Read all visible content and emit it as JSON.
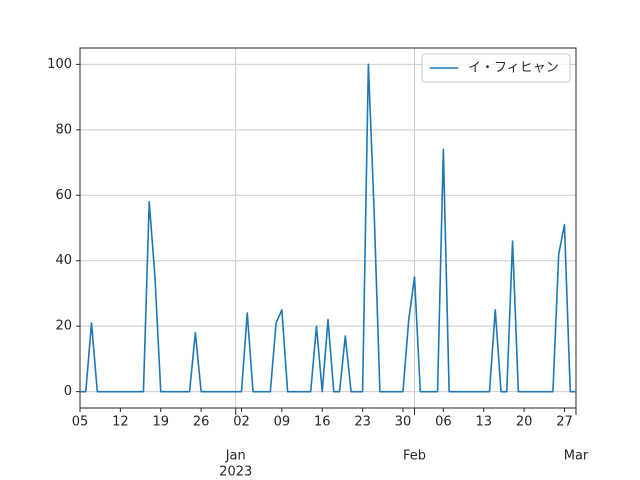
{
  "chart_data": {
    "type": "line",
    "x": [
      "2022-12-05",
      "2022-12-06",
      "2022-12-07",
      "2022-12-08",
      "2022-12-09",
      "2022-12-10",
      "2022-12-11",
      "2022-12-12",
      "2022-12-13",
      "2022-12-14",
      "2022-12-15",
      "2022-12-16",
      "2022-12-17",
      "2022-12-18",
      "2022-12-19",
      "2022-12-20",
      "2022-12-21",
      "2022-12-22",
      "2022-12-23",
      "2022-12-24",
      "2022-12-25",
      "2022-12-26",
      "2022-12-27",
      "2022-12-28",
      "2022-12-29",
      "2022-12-30",
      "2022-12-31",
      "2023-01-01",
      "2023-01-02",
      "2023-01-03",
      "2023-01-04",
      "2023-01-05",
      "2023-01-06",
      "2023-01-07",
      "2023-01-08",
      "2023-01-09",
      "2023-01-10",
      "2023-01-11",
      "2023-01-12",
      "2023-01-13",
      "2023-01-14",
      "2023-01-15",
      "2023-01-16",
      "2023-01-17",
      "2023-01-18",
      "2023-01-19",
      "2023-01-20",
      "2023-01-21",
      "2023-01-22",
      "2023-01-23",
      "2023-01-24",
      "2023-01-25",
      "2023-01-26",
      "2023-01-27",
      "2023-01-28",
      "2023-01-29",
      "2023-01-30",
      "2023-01-31",
      "2023-02-01",
      "2023-02-02",
      "2023-02-03",
      "2023-02-04",
      "2023-02-05",
      "2023-02-06",
      "2023-02-07",
      "2023-02-08",
      "2023-02-09",
      "2023-02-10",
      "2023-02-11",
      "2023-02-12",
      "2023-02-13",
      "2023-02-14",
      "2023-02-15",
      "2023-02-16",
      "2023-02-17",
      "2023-02-18",
      "2023-02-19",
      "2023-02-20",
      "2023-02-21",
      "2023-02-22",
      "2023-02-23",
      "2023-02-24",
      "2023-02-25",
      "2023-02-26",
      "2023-02-27",
      "2023-02-28",
      "2023-03-01"
    ],
    "series": [
      {
        "name": "イ・フィヒャン",
        "color": "#1f77b4",
        "values": [
          0,
          0,
          21,
          0,
          0,
          0,
          0,
          0,
          0,
          0,
          0,
          0,
          58,
          35,
          0,
          0,
          0,
          0,
          0,
          0,
          18,
          0,
          0,
          0,
          0,
          0,
          0,
          0,
          0,
          24,
          0,
          0,
          0,
          0,
          21,
          25,
          0,
          0,
          0,
          0,
          0,
          20,
          0,
          22,
          0,
          0,
          17,
          0,
          0,
          0,
          100,
          55,
          0,
          0,
          0,
          0,
          0,
          22,
          35,
          0,
          0,
          0,
          0,
          74,
          0,
          0,
          0,
          0,
          0,
          0,
          0,
          0,
          25,
          0,
          0,
          46,
          0,
          0,
          0,
          0,
          0,
          0,
          0,
          42,
          51,
          0,
          0
        ]
      }
    ],
    "xlim": [
      "2022-12-05",
      "2023-03-01"
    ],
    "xticks_minor": [
      {
        "value": "2022-12-05",
        "label": "05"
      },
      {
        "value": "2022-12-12",
        "label": "12"
      },
      {
        "value": "2022-12-19",
        "label": "19"
      },
      {
        "value": "2022-12-26",
        "label": "26"
      },
      {
        "value": "2023-01-02",
        "label": "02"
      },
      {
        "value": "2023-01-09",
        "label": "09"
      },
      {
        "value": "2023-01-16",
        "label": "16"
      },
      {
        "value": "2023-01-23",
        "label": "23"
      },
      {
        "value": "2023-01-30",
        "label": "30"
      },
      {
        "value": "2023-02-06",
        "label": "06"
      },
      {
        "value": "2023-02-13",
        "label": "13"
      },
      {
        "value": "2023-02-20",
        "label": "20"
      },
      {
        "value": "2023-02-27",
        "label": "27"
      }
    ],
    "xticks": [
      {
        "value": "2023-01-01",
        "label": "Jan"
      },
      {
        "value": "2023-02-01",
        "label": "Feb"
      },
      {
        "value": "2023-03-01",
        "label": "Mar"
      }
    ],
    "year_label": "2023",
    "ylim": [
      -5,
      105
    ],
    "yticks": [
      0,
      20,
      40,
      60,
      80,
      100
    ],
    "grid": true,
    "legend": "upper right"
  }
}
